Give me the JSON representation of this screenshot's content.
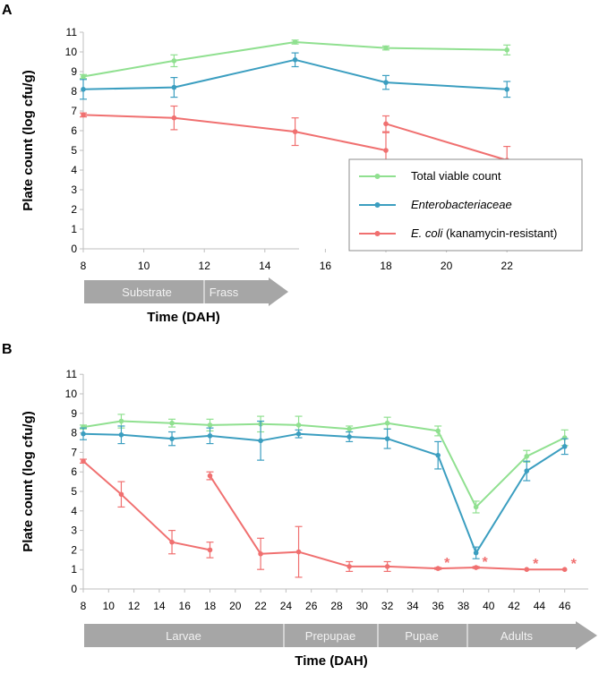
{
  "panels": {
    "a": {
      "label": "A",
      "ylabel": "Plate count (log cfu/g)",
      "xlabel": "Time (DAH)",
      "x_ticks": [
        8,
        10,
        12,
        14,
        16,
        18,
        20,
        22
      ],
      "y_ticks": [
        0,
        1,
        2,
        3,
        4,
        5,
        6,
        7,
        8,
        9,
        10,
        11
      ],
      "stages": [
        "Substrate",
        "Frass"
      ]
    },
    "b": {
      "label": "B",
      "ylabel": "Plate count (log cfu/g)",
      "xlabel": "Time (DAH)",
      "x_ticks": [
        8,
        10,
        12,
        14,
        16,
        18,
        20,
        22,
        24,
        26,
        28,
        30,
        32,
        34,
        36,
        38,
        40,
        42,
        44,
        46
      ],
      "y_ticks": [
        0,
        1,
        2,
        3,
        4,
        5,
        6,
        7,
        8,
        9,
        10,
        11
      ],
      "stages": [
        "Larvae",
        "Prepupae",
        "Pupae",
        "Adults"
      ]
    }
  },
  "legend": {
    "items": [
      {
        "label": "Total viable count",
        "italic": "",
        "suffix": ""
      },
      {
        "label": "",
        "italic": "Enterobacteriaceae",
        "suffix": ""
      },
      {
        "label": "",
        "italic": "E. coli",
        "suffix": " (kanamycin-resistant)"
      }
    ]
  },
  "colors": {
    "tvc": "#90e090",
    "entero": "#3b9ec0",
    "ecoli": "#f07070",
    "axis": "#bfbfbf",
    "arrow": "#a6a6a6"
  },
  "chart_data": [
    {
      "type": "line",
      "title": "A",
      "xlabel": "Time (DAH)",
      "ylabel": "Plate count (log cfu/g)",
      "xlim": [
        8,
        23
      ],
      "ylim": [
        0,
        11
      ],
      "series": [
        {
          "name": "Total viable count",
          "segments": [
            [
              {
                "x": 8,
                "y": 8.75,
                "err": 0.1
              },
              {
                "x": 11,
                "y": 9.55,
                "err": 0.3
              },
              {
                "x": 15,
                "y": 10.5,
                "err": 0.1
              },
              {
                "x": 18,
                "y": 10.2,
                "err": 0.1
              },
              {
                "x": 22,
                "y": 10.1,
                "err": 0.25
              }
            ]
          ]
        },
        {
          "name": "Enterobacteriaceae",
          "segments": [
            [
              {
                "x": 8,
                "y": 8.1,
                "err": 0.5
              },
              {
                "x": 11,
                "y": 8.2,
                "err": 0.5
              },
              {
                "x": 15,
                "y": 9.6,
                "err": 0.35
              },
              {
                "x": 18,
                "y": 8.45,
                "err": 0.35
              },
              {
                "x": 22,
                "y": 8.1,
                "err": 0.4
              }
            ]
          ]
        },
        {
          "name": "E. coli (kanamycin-resistant)",
          "segments": [
            [
              {
                "x": 8,
                "y": 6.8,
                "err": 0.1
              },
              {
                "x": 11,
                "y": 6.65,
                "err": 0.6
              },
              {
                "x": 15,
                "y": 5.95,
                "err": 0.7
              },
              {
                "x": 18,
                "y": 5.0,
                "err": 0.9
              }
            ],
            [
              {
                "x": 18,
                "y": 6.35,
                "err": 0.4
              },
              {
                "x": 22,
                "y": 4.5,
                "err": 0.7
              }
            ]
          ]
        }
      ]
    },
    {
      "type": "line",
      "title": "B",
      "xlabel": "Time (DAH)",
      "ylabel": "Plate count (log cfu/g)",
      "xlim": [
        8,
        47
      ],
      "ylim": [
        0,
        11
      ],
      "series": [
        {
          "name": "Total viable count",
          "segments": [
            [
              {
                "x": 8,
                "y": 8.3,
                "err": 0.1
              },
              {
                "x": 11,
                "y": 8.6,
                "err": 0.35
              },
              {
                "x": 15,
                "y": 8.5,
                "err": 0.2
              },
              {
                "x": 18,
                "y": 8.4,
                "err": 0.3
              },
              {
                "x": 22,
                "y": 8.45,
                "err": 0.4
              },
              {
                "x": 25,
                "y": 8.4,
                "err": 0.45
              },
              {
                "x": 29,
                "y": 8.2,
                "err": 0.15
              },
              {
                "x": 32,
                "y": 8.5,
                "err": 0.3
              },
              {
                "x": 36,
                "y": 8.1,
                "err": 0.25
              },
              {
                "x": 39,
                "y": 4.2,
                "err": 0.3
              },
              {
                "x": 43,
                "y": 6.8,
                "err": 0.3
              },
              {
                "x": 46,
                "y": 7.75,
                "err": 0.4
              }
            ]
          ]
        },
        {
          "name": "Enterobacteriaceae",
          "segments": [
            [
              {
                "x": 8,
                "y": 7.95,
                "err": 0.3
              },
              {
                "x": 11,
                "y": 7.9,
                "err": 0.45
              },
              {
                "x": 15,
                "y": 7.7,
                "err": 0.35
              },
              {
                "x": 18,
                "y": 7.85,
                "err": 0.4
              },
              {
                "x": 22,
                "y": 7.6,
                "err": 1.0
              },
              {
                "x": 25,
                "y": 7.95,
                "err": 0.2
              },
              {
                "x": 29,
                "y": 7.8,
                "err": 0.25
              },
              {
                "x": 32,
                "y": 7.7,
                "err": 0.5
              },
              {
                "x": 36,
                "y": 6.85,
                "err": 0.7
              },
              {
                "x": 39,
                "y": 1.85,
                "err": 0.3
              },
              {
                "x": 43,
                "y": 6.05,
                "err": 0.5
              },
              {
                "x": 46,
                "y": 7.3,
                "err": 0.4
              }
            ]
          ]
        },
        {
          "name": "E. coli (kanamycin-resistant)",
          "segments": [
            [
              {
                "x": 8,
                "y": 6.55,
                "err": 0.1
              },
              {
                "x": 11,
                "y": 4.85,
                "err": 0.65
              },
              {
                "x": 15,
                "y": 2.4,
                "err": 0.6
              },
              {
                "x": 18,
                "y": 2.0,
                "err": 0.4
              }
            ],
            [
              {
                "x": 18,
                "y": 5.8,
                "err": 0.2
              },
              {
                "x": 22,
                "y": 1.8,
                "err": 0.8
              },
              {
                "x": 25,
                "y": 1.9,
                "err": 1.3
              },
              {
                "x": 29,
                "y": 1.15,
                "err": 0.25
              },
              {
                "x": 32,
                "y": 1.15,
                "err": 0.25
              },
              {
                "x": 36,
                "y": 1.05,
                "err": 0.05
              },
              {
                "x": 39,
                "y": 1.1,
                "err": 0.05
              },
              {
                "x": 43,
                "y": 1.0,
                "err": 0.0
              },
              {
                "x": 46,
                "y": 1.0,
                "err": 0.0
              }
            ]
          ]
        }
      ],
      "annotations": [
        {
          "text": "*",
          "x": 36,
          "series": "E. coli (kanamycin-resistant)"
        },
        {
          "text": "*",
          "x": 39,
          "series": "E. coli (kanamycin-resistant)"
        },
        {
          "text": "*",
          "x": 43,
          "series": "E. coli (kanamycin-resistant)"
        },
        {
          "text": "*",
          "x": 46,
          "series": "E. coli (kanamycin-resistant)"
        }
      ]
    }
  ]
}
